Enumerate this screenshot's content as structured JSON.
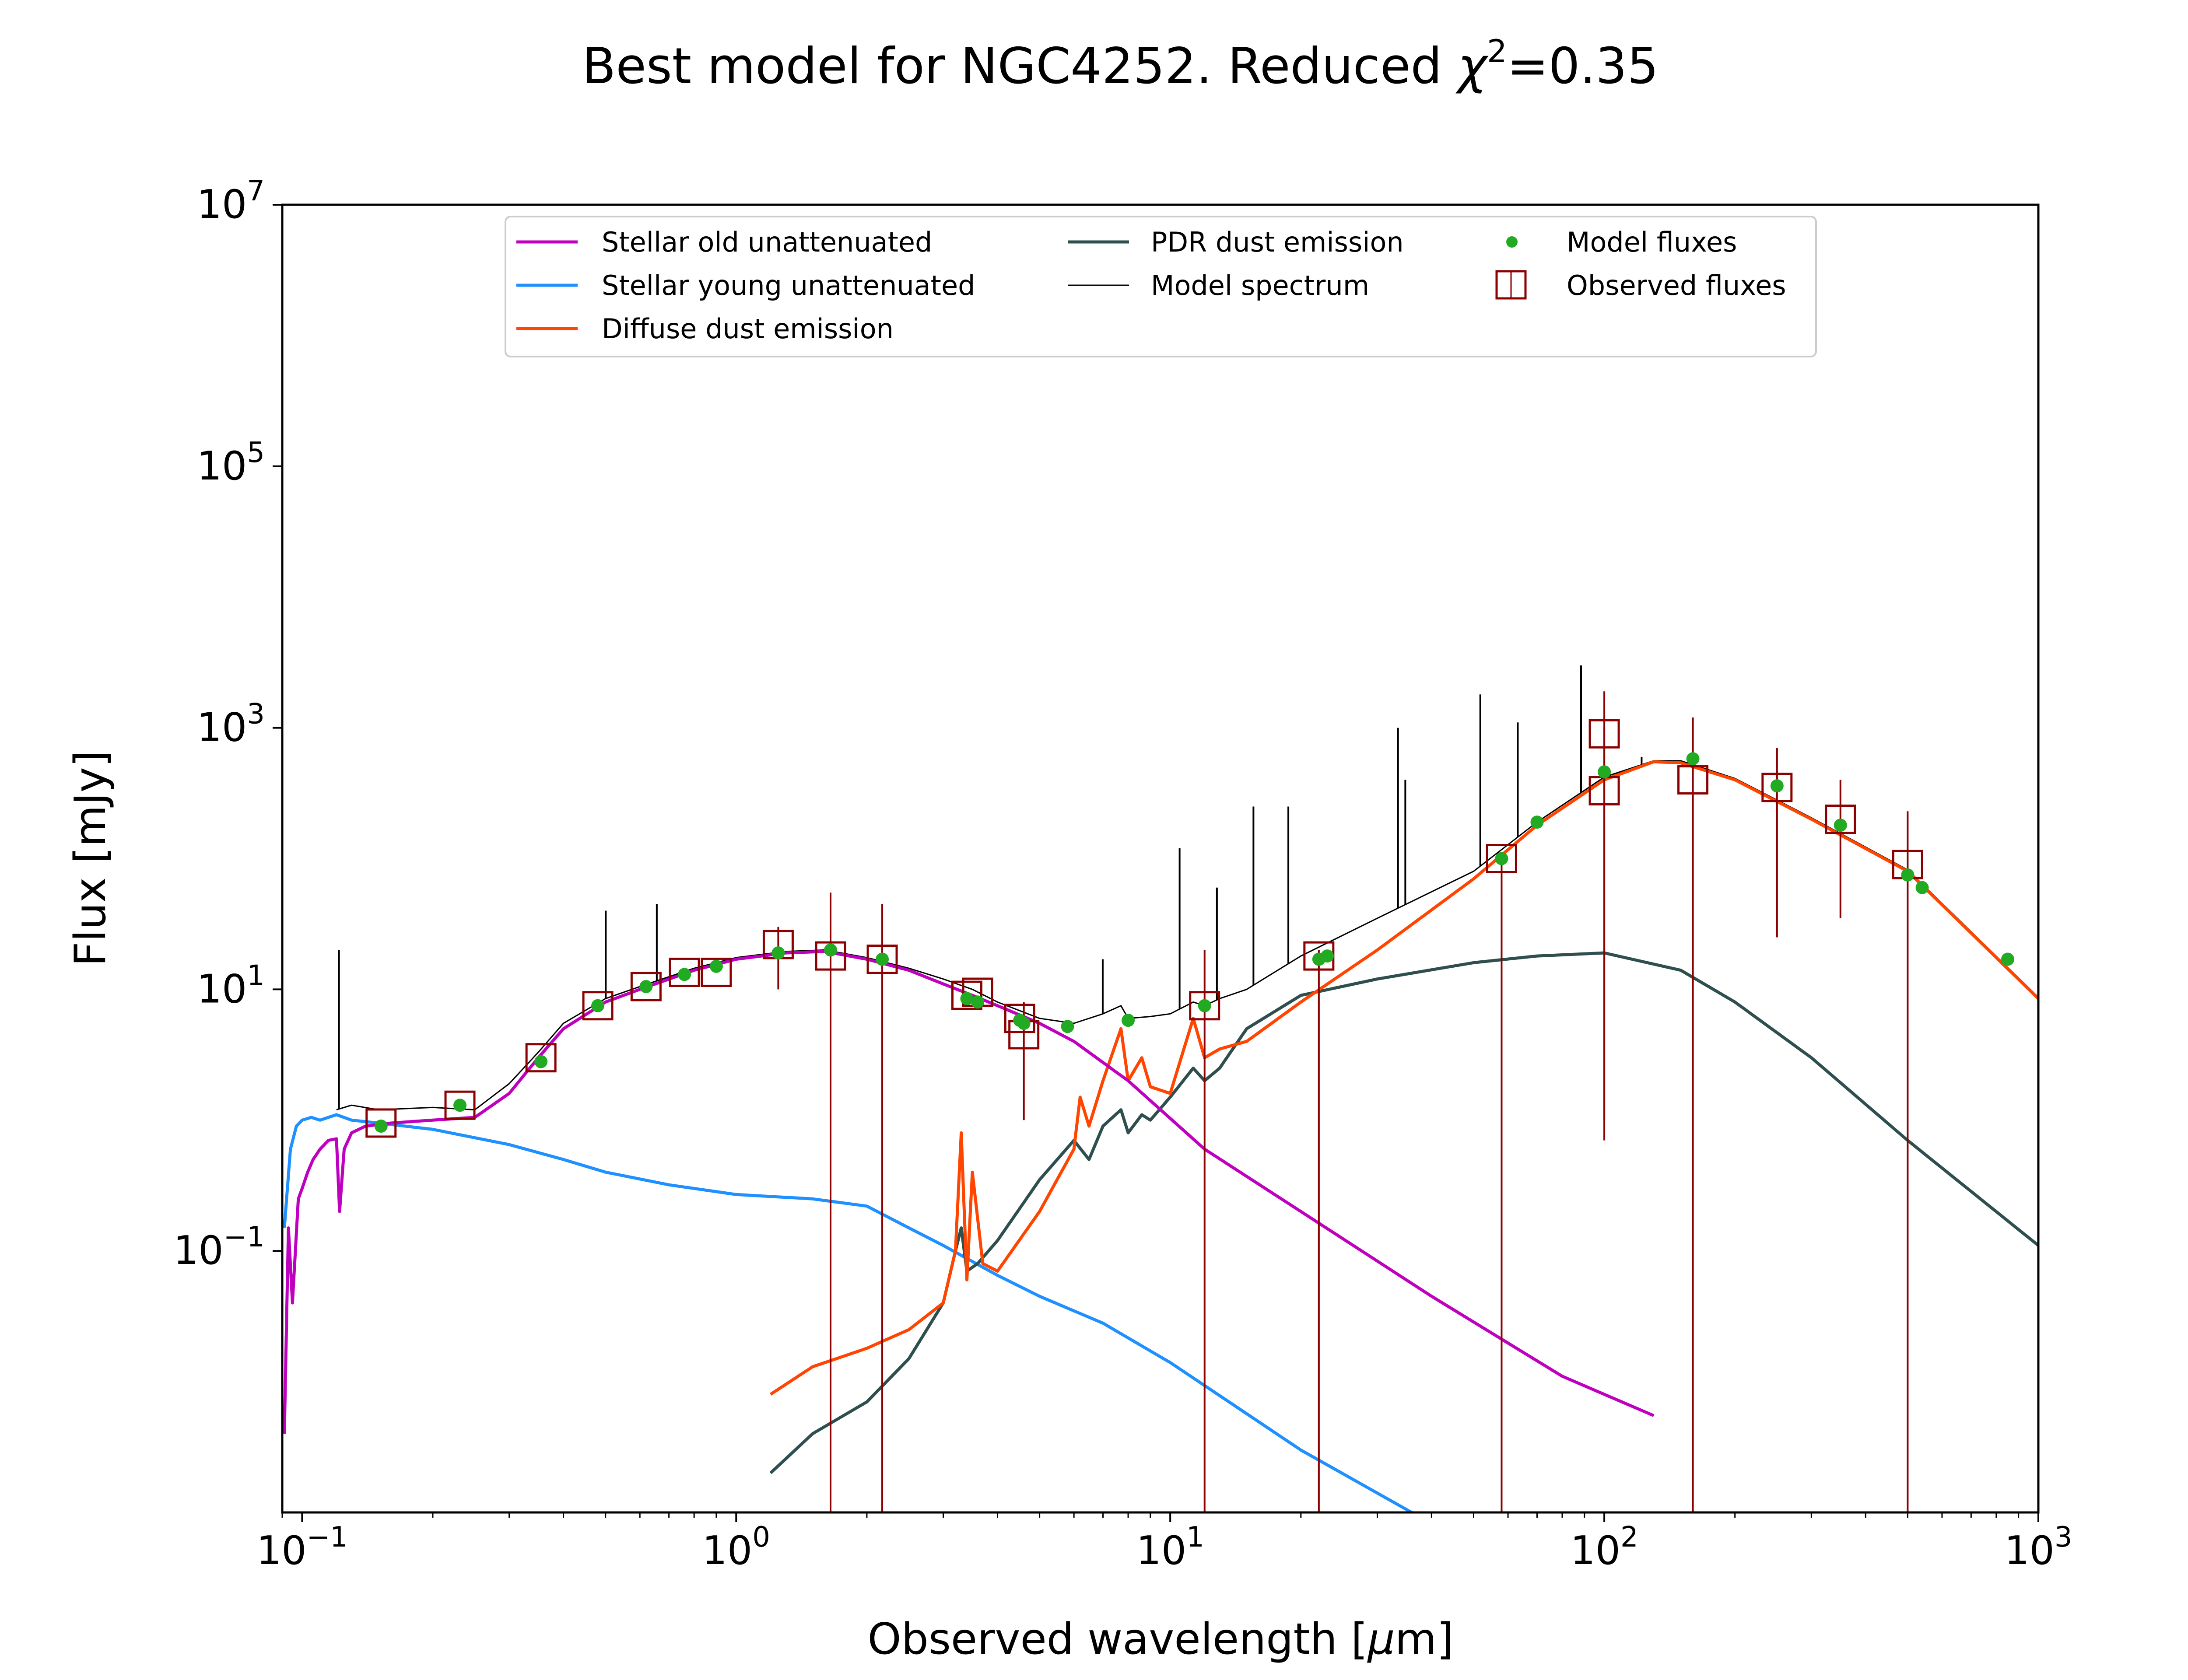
{
  "chart_data": {
    "type": "line",
    "title": "Best model for NGC4252. Reduced χ²=0.35",
    "title_parts": {
      "main": "Best model for NGC4252. Reduced ",
      "chi": "χ",
      "sup": "2",
      "tail": "=0.35"
    },
    "xlabel": "Observed wavelength [μm]",
    "xlabel_parts": {
      "pre": "Observed wavelength [",
      "mu": "μ",
      "post": "m]"
    },
    "ylabel": "Flux [mJy]",
    "xscale": "log",
    "yscale": "log",
    "xlim": [
      0.09,
      1000
    ],
    "ylim": [
      0.001,
      10000000
    ],
    "x_ticks": [
      {
        "value": 0.1,
        "base": "10",
        "exp": "−1"
      },
      {
        "value": 1,
        "base": "10",
        "exp": "0"
      },
      {
        "value": 10,
        "base": "10",
        "exp": "1"
      },
      {
        "value": 100,
        "base": "10",
        "exp": "2"
      },
      {
        "value": 1000,
        "base": "10",
        "exp": "3"
      }
    ],
    "y_ticks": [
      {
        "value": 0.1,
        "base": "10",
        "exp": "−1"
      },
      {
        "value": 10,
        "base": "10",
        "exp": "1"
      },
      {
        "value": 1000,
        "base": "10",
        "exp": "3"
      },
      {
        "value": 100000,
        "base": "10",
        "exp": "5"
      },
      {
        "value": 10000000,
        "base": "10",
        "exp": "7"
      }
    ],
    "legend_position": "upper-center",
    "colors": {
      "stellar_old": "#bf00bf",
      "stellar_young": "#1e90ff",
      "diffuse_dust": "#ff4500",
      "pdr_dust": "#2f4f4f",
      "model_spectrum": "#000000",
      "model_fluxes": "#22aa22",
      "observed_fluxes": "#8b0000"
    },
    "series": [
      {
        "name": "Stellar old unattenuated",
        "key": "stellar_old",
        "kind": "line",
        "x": [
          0.091,
          0.093,
          0.095,
          0.098,
          0.1,
          0.103,
          0.106,
          0.11,
          0.115,
          0.12,
          0.122,
          0.125,
          0.13,
          0.14,
          0.16,
          0.2,
          0.25,
          0.3,
          0.35,
          0.4,
          0.5,
          0.6,
          0.8,
          1.0,
          1.3,
          1.6,
          2.0,
          2.5,
          3.0,
          3.5,
          4.0,
          5.0,
          6.0,
          8.0,
          12,
          20,
          40,
          80,
          130
        ],
        "y": [
          0.004,
          0.15,
          0.04,
          0.25,
          0.3,
          0.4,
          0.5,
          0.6,
          0.7,
          0.72,
          0.2,
          0.6,
          0.8,
          0.9,
          0.95,
          1.0,
          1.05,
          1.6,
          3.0,
          5.0,
          8.0,
          10.0,
          14.0,
          17.0,
          19.0,
          19.5,
          17.0,
          14.0,
          11.0,
          9.0,
          7.5,
          5.5,
          4.0,
          2.0,
          0.6,
          0.2,
          0.045,
          0.011,
          0.0055
        ]
      },
      {
        "name": "Stellar young unattenuated",
        "key": "stellar_young",
        "kind": "line",
        "x": [
          0.091,
          0.094,
          0.097,
          0.1,
          0.105,
          0.11,
          0.12,
          0.13,
          0.15,
          0.2,
          0.3,
          0.4,
          0.5,
          0.7,
          1.0,
          1.5,
          2.0,
          2.5,
          3.0,
          4.0,
          5.0,
          7.0,
          10,
          20,
          36
        ],
        "y": [
          0.15,
          0.6,
          0.9,
          1.0,
          1.05,
          1.0,
          1.1,
          1.0,
          0.95,
          0.85,
          0.65,
          0.5,
          0.4,
          0.32,
          0.27,
          0.25,
          0.22,
          0.15,
          0.11,
          0.065,
          0.045,
          0.028,
          0.014,
          0.003,
          0.001
        ]
      },
      {
        "name": "Diffuse dust emission",
        "key": "diffuse_dust",
        "kind": "line",
        "x": [
          1.2,
          1.5,
          2.0,
          2.5,
          3.0,
          3.2,
          3.3,
          3.4,
          3.5,
          3.7,
          4.0,
          5.0,
          6.0,
          6.2,
          6.5,
          7.0,
          7.7,
          8.0,
          8.6,
          9.0,
          10,
          11.3,
          12,
          13,
          15,
          20,
          30,
          50,
          70,
          100,
          130,
          150,
          200,
          300,
          500,
          1000
        ],
        "y": [
          0.008,
          0.013,
          0.018,
          0.025,
          0.04,
          0.1,
          0.8,
          0.06,
          0.4,
          0.08,
          0.07,
          0.2,
          0.6,
          1.5,
          0.9,
          2.0,
          5.0,
          2.0,
          3.0,
          1.8,
          1.6,
          6.0,
          3.0,
          3.5,
          4.0,
          8.0,
          20,
          70,
          180,
          400,
          550,
          540,
          400,
          200,
          80,
          8.5
        ]
      },
      {
        "name": "PDR dust emission",
        "key": "pdr_dust",
        "kind": "line",
        "x": [
          1.2,
          1.5,
          2.0,
          2.5,
          3.0,
          3.2,
          3.3,
          3.4,
          3.6,
          4.0,
          5.0,
          6.0,
          6.5,
          7.0,
          7.7,
          8.0,
          8.6,
          9.0,
          10,
          11.3,
          12,
          13,
          15,
          20,
          30,
          50,
          70,
          100,
          150,
          200,
          300,
          500,
          1000
        ],
        "y": [
          0.002,
          0.004,
          0.007,
          0.015,
          0.04,
          0.1,
          0.15,
          0.07,
          0.08,
          0.12,
          0.35,
          0.7,
          0.5,
          0.9,
          1.2,
          0.8,
          1.1,
          1.0,
          1.5,
          2.5,
          2.0,
          2.5,
          5.0,
          9.0,
          12,
          16,
          18,
          19,
          14,
          8.0,
          3.0,
          0.7,
          0.11
        ]
      },
      {
        "name": "Model spectrum",
        "key": "model_spectrum",
        "kind": "spectrum",
        "x": [
          0.12,
          0.13,
          0.15,
          0.2,
          0.25,
          0.3,
          0.35,
          0.4,
          0.5,
          0.6,
          0.8,
          1.0,
          1.3,
          1.6,
          2.0,
          2.5,
          3.0,
          3.5,
          4.0,
          5.0,
          6.0,
          7.0,
          7.7,
          8.0,
          9.0,
          10,
          11.3,
          12,
          13,
          15,
          20,
          30,
          50,
          70,
          100,
          130,
          150,
          200,
          300,
          500,
          1000
        ],
        "y": [
          1.2,
          1.3,
          1.2,
          1.25,
          1.2,
          1.9,
          3.3,
          5.5,
          8.5,
          10.5,
          14.5,
          17.5,
          19.5,
          20,
          17.5,
          14.5,
          12,
          10,
          8,
          6,
          5.5,
          6.5,
          7.5,
          6,
          6.2,
          6.5,
          8.0,
          7.5,
          8.5,
          10,
          18,
          35,
          80,
          190,
          420,
          560,
          560,
          410,
          205,
          82,
          8.7
        ],
        "emission_lines": [
          {
            "x": 0.1216,
            "y": 20
          },
          {
            "x": 0.5007,
            "y": 40
          },
          {
            "x": 0.6563,
            "y": 45
          },
          {
            "x": 6.99,
            "y": 17
          },
          {
            "x": 10.51,
            "y": 120
          },
          {
            "x": 12.81,
            "y": 60
          },
          {
            "x": 15.55,
            "y": 250
          },
          {
            "x": 18.71,
            "y": 250
          },
          {
            "x": 33.48,
            "y": 1000
          },
          {
            "x": 34.8,
            "y": 400
          },
          {
            "x": 51.8,
            "y": 1800
          },
          {
            "x": 63.2,
            "y": 1100
          },
          {
            "x": 88.4,
            "y": 3000
          },
          {
            "x": 121.9,
            "y": 600
          }
        ]
      },
      {
        "name": "Model fluxes",
        "key": "model_fluxes",
        "kind": "points",
        "x": [
          0.152,
          0.231,
          0.355,
          0.48,
          0.62,
          0.76,
          0.9,
          1.25,
          1.65,
          2.17,
          3.4,
          3.6,
          4.5,
          4.6,
          5.8,
          8.0,
          12.0,
          22.0,
          23.0,
          58.0,
          70.0,
          100.0,
          160.0,
          250.0,
          350.0,
          500.0,
          540.0,
          850.0
        ],
        "y": [
          0.9,
          1.3,
          2.8,
          7.5,
          10.5,
          13,
          15,
          19,
          20,
          17,
          8.5,
          8,
          5.8,
          5.5,
          5.2,
          5.8,
          7.5,
          17,
          18,
          100,
          190,
          460,
          580,
          360,
          180,
          75,
          60,
          17
        ]
      },
      {
        "name": "Observed fluxes",
        "key": "observed_fluxes",
        "kind": "errorbars",
        "points": [
          {
            "x": 0.152,
            "y": 0.95,
            "lo": 0.95,
            "hi": 0.95
          },
          {
            "x": 0.231,
            "y": 1.3,
            "lo": 1.3,
            "hi": 1.3
          },
          {
            "x": 0.355,
            "y": 3.0,
            "lo": 3.0,
            "hi": 3.0
          },
          {
            "x": 0.48,
            "y": 7.5,
            "lo": 7.5,
            "hi": 7.5
          },
          {
            "x": 0.62,
            "y": 10.5,
            "lo": 10.5,
            "hi": 10.5
          },
          {
            "x": 0.76,
            "y": 13.5,
            "lo": 13.5,
            "hi": 13.5
          },
          {
            "x": 0.9,
            "y": 13.5,
            "lo": 13.5,
            "hi": 13.5
          },
          {
            "x": 1.25,
            "y": 22,
            "lo": 10,
            "hi": 30
          },
          {
            "x": 1.65,
            "y": 18,
            "lo": 0.001,
            "hi": 55
          },
          {
            "x": 2.17,
            "y": 17,
            "lo": 0.001,
            "hi": 45
          },
          {
            "x": 3.4,
            "y": 9,
            "lo": 9,
            "hi": 9
          },
          {
            "x": 3.6,
            "y": 9.5,
            "lo": 9.5,
            "hi": 9.5
          },
          {
            "x": 4.5,
            "y": 6,
            "lo": 6,
            "hi": 6
          },
          {
            "x": 4.6,
            "y": 4.5,
            "lo": 1.0,
            "hi": 8
          },
          {
            "x": 12.0,
            "y": 7.5,
            "lo": 0.001,
            "hi": 20
          },
          {
            "x": 22.0,
            "y": 18,
            "lo": 0.001,
            "hi": 20
          },
          {
            "x": 58.0,
            "y": 100,
            "lo": 0.001,
            "hi": 100
          },
          {
            "x": 100.0,
            "y": 900,
            "lo": 0.7,
            "hi": 1900
          },
          {
            "x": 100.0,
            "y": 330,
            "lo": 1.0,
            "hi": 1000
          },
          {
            "x": 160.0,
            "y": 400,
            "lo": 0.001,
            "hi": 1200
          },
          {
            "x": 250.0,
            "y": 350,
            "lo": 25,
            "hi": 700
          },
          {
            "x": 350.0,
            "y": 200,
            "lo": 35,
            "hi": 400
          },
          {
            "x": 500.0,
            "y": 90,
            "lo": 0.001,
            "hi": 230
          }
        ]
      }
    ]
  }
}
